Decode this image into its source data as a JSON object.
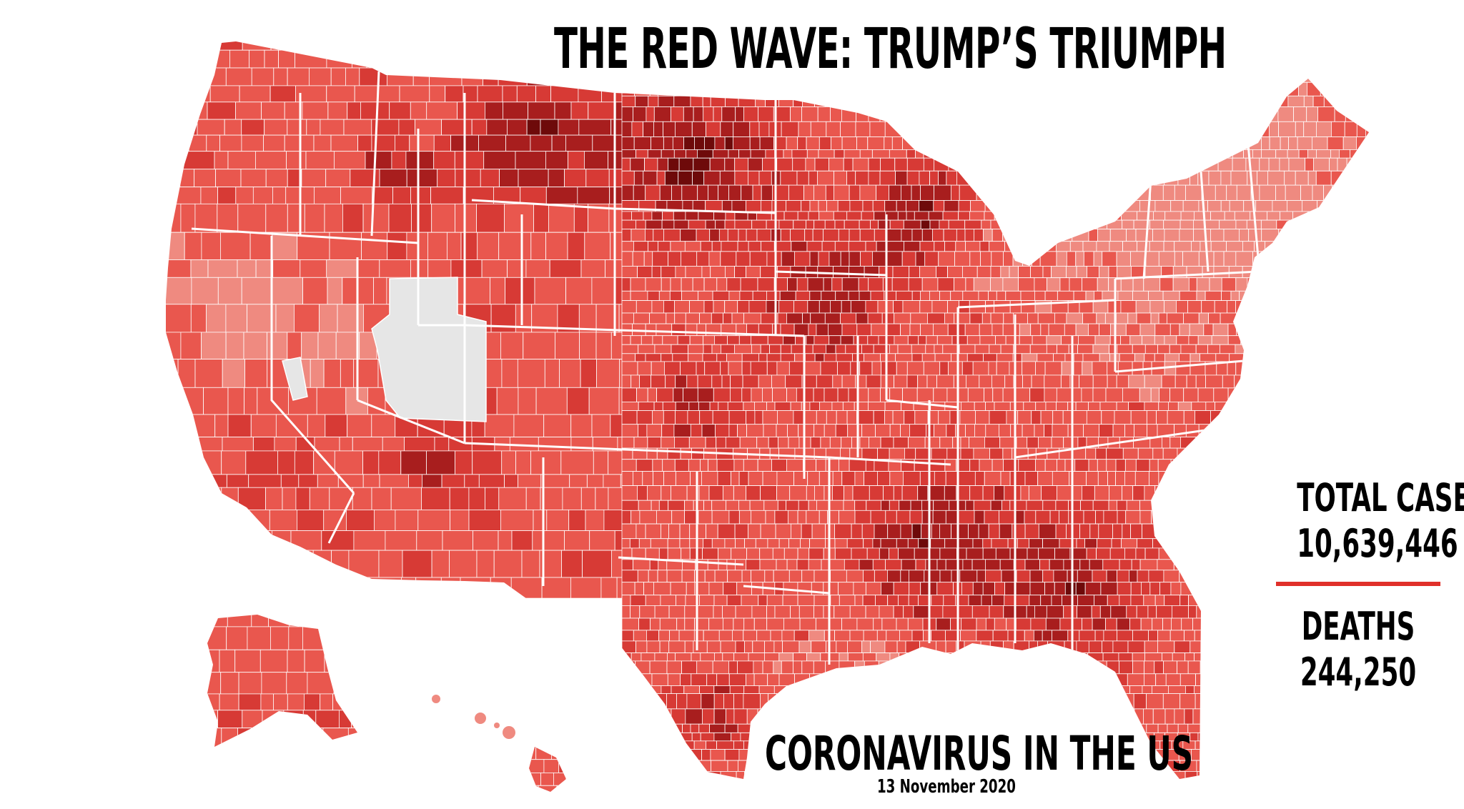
{
  "title": "THE RED WAVE: TRUMP’S TRIUMPH",
  "subtitle": "CORONAVIRUS IN THE US",
  "date": "13 November 2020",
  "stats": {
    "total_cases_label": "TOTAL CASES",
    "total_cases_value": "10,639,446",
    "deaths_label": "DEATHS",
    "deaths_value": "244,250"
  },
  "colors": {
    "background": "#ffffff",
    "light_red": "#ef8a80",
    "mid_red": "#e9574e",
    "red": "#d73a35",
    "dark_red": "#a81e1e",
    "darkest_red": "#6e0a0a",
    "no_data": "#e6e6e6",
    "state_border": "#ffffff",
    "divider": "#e0302a"
  }
}
